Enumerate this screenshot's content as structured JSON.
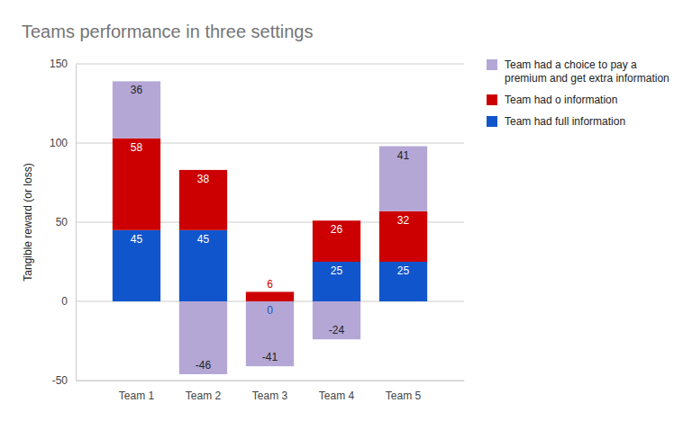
{
  "chart_data": {
    "type": "bar",
    "title": "Teams performance in three settings",
    "y_label": "Tangible reward (or loss)",
    "categories": [
      "Team 1",
      "Team 2",
      "Team 3",
      "Team 4",
      "Team 5"
    ],
    "series": [
      {
        "name": "Team had full information",
        "color": "#1155cc",
        "values": [
          45,
          45,
          0,
          25,
          25
        ]
      },
      {
        "name": "Team had o information",
        "color": "#cc0000",
        "values": [
          58,
          38,
          6,
          26,
          32
        ]
      },
      {
        "name": "Team had a choice to pay a premium and get extra information",
        "color": "#b4a7d6",
        "values": [
          36,
          -46,
          -41,
          -24,
          41
        ]
      }
    ],
    "ylim": [
      -50,
      150
    ],
    "yticks": [
      -50,
      0,
      50,
      100,
      150
    ],
    "grid": true,
    "stacked": true,
    "data_labels": true,
    "legend": "right"
  }
}
